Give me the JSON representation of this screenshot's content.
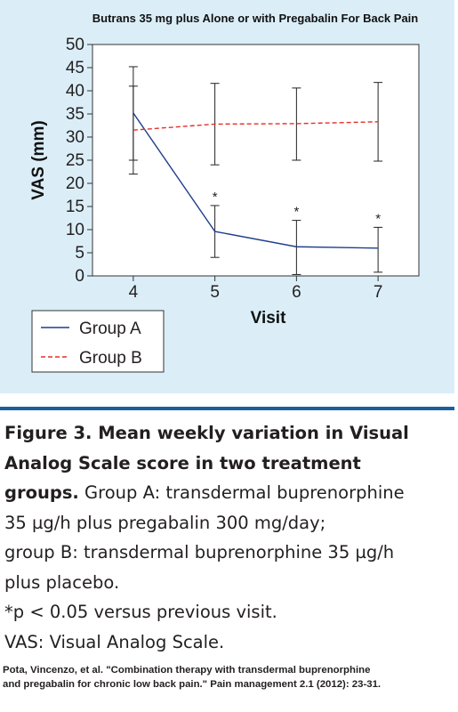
{
  "chart_data": {
    "type": "line",
    "title": "Butrans 35 mg plus Alone or with Pregabalin For Back Pain",
    "xlabel": "Visit",
    "ylabel": "VAS (mm)",
    "x": [
      4,
      5,
      6,
      7
    ],
    "xlim": [
      3.5,
      7.5
    ],
    "ylim": [
      0,
      50
    ],
    "yticks": [
      0,
      5,
      10,
      15,
      20,
      25,
      30,
      35,
      40,
      45,
      50
    ],
    "grid": false,
    "legend_position": "bottom-left",
    "series": [
      {
        "name": "Group A",
        "style": "solid",
        "color": "#1f3f8c",
        "values": [
          35.2,
          9.6,
          6.3,
          6.0
        ],
        "error_low": [
          22.0,
          4.0,
          0.3,
          0.8
        ],
        "error_high": [
          41.0,
          15.2,
          12.0,
          10.5
        ],
        "annotations": [
          "",
          "*",
          "*",
          "*"
        ]
      },
      {
        "name": "Group B",
        "style": "dashed",
        "color": "#e0312b",
        "values": [
          31.5,
          32.8,
          32.9,
          33.3
        ],
        "error_low": [
          25.0,
          24.0,
          25.0,
          24.8
        ],
        "error_high": [
          45.2,
          41.6,
          40.6,
          41.8
        ],
        "annotations": [
          "",
          "",
          "",
          ""
        ]
      }
    ]
  },
  "caption": {
    "lines": [
      {
        "bold": "Figure 3. Mean weekly variation in Visual",
        "text": ""
      },
      {
        "bold": "Analog Scale score in two treatment",
        "text": ""
      },
      {
        "bold": "groups.",
        "text": " Group A: transdermal buprenorphine"
      },
      {
        "bold": "",
        "text": "35 µg/h plus pregabalin 300 mg/day;"
      },
      {
        "bold": "",
        "text": "group B: transdermal buprenorphine 35 µg/h"
      },
      {
        "bold": "",
        "text": "plus placebo."
      },
      {
        "bold": "",
        "text": "*p < 0.05 versus previous visit."
      },
      {
        "bold": "",
        "text": "VAS: Visual Analog Scale."
      }
    ]
  },
  "citation": {
    "line1": "Pota, Vincenzo, et al. \"Combination therapy with transdermal buprenorphine",
    "line2": "and pregabalin for chronic low back pain.\" Pain management 2.1 (2012): 23-31."
  },
  "colors": {
    "panel_background": "#dbeef8",
    "rule": "#1a5fa0"
  }
}
